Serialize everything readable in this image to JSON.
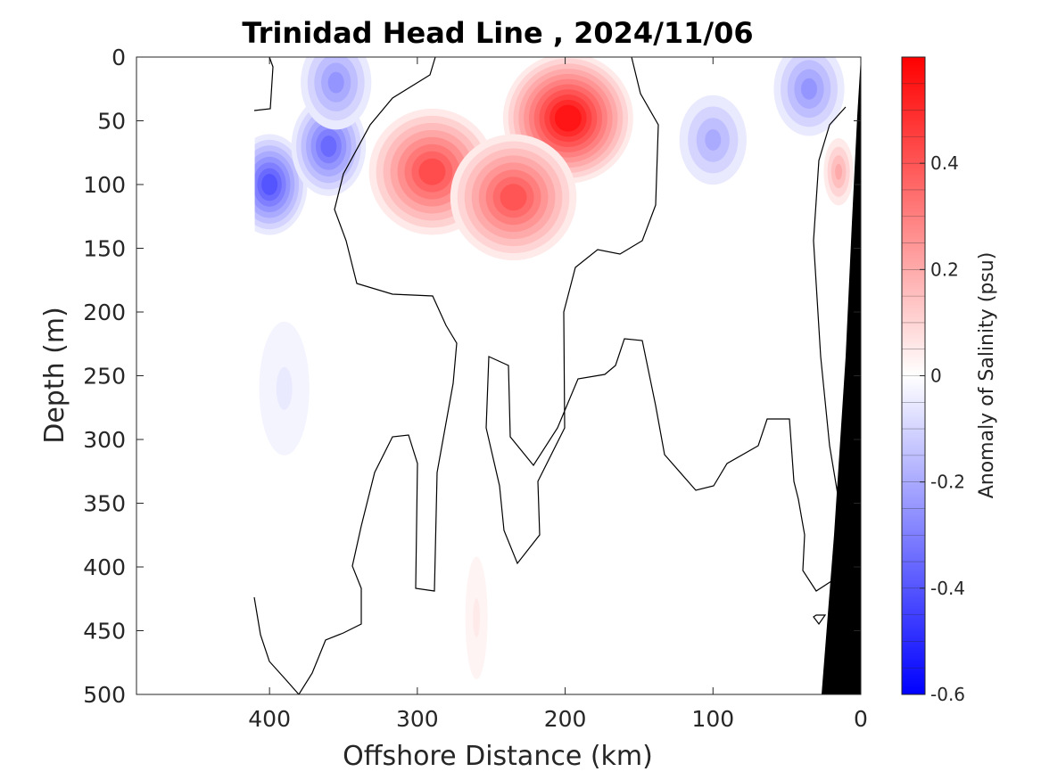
{
  "chart_data": {
    "type": "heatmap",
    "title": "Trinidad Head Line , 2024/11/06",
    "xlabel": "Offshore Distance (km)",
    "ylabel": "Depth (m)",
    "xlim": [
      490,
      0
    ],
    "ylim": [
      0,
      500
    ],
    "x_ticks": [
      400,
      300,
      200,
      100,
      0
    ],
    "y_ticks": [
      0,
      50,
      100,
      150,
      200,
      250,
      300,
      350,
      400,
      450,
      500
    ],
    "colorbar": {
      "label": "Anomaly of Salinity (psu)",
      "range": [
        -0.6,
        0.6
      ],
      "levels": 24,
      "ticks": [
        -0.6,
        -0.4,
        -0.2,
        0,
        0.2,
        0.4
      ],
      "low_color": "#0000ff",
      "high_color": "#ff0000"
    },
    "data_start_x": 410,
    "features": [
      {
        "kind": "positive",
        "x": 198,
        "depth": 48,
        "anomaly": 0.55
      },
      {
        "kind": "positive",
        "x": 290,
        "depth": 90,
        "anomaly": 0.42
      },
      {
        "kind": "positive",
        "x": 235,
        "depth": 110,
        "anomaly": 0.4
      },
      {
        "kind": "positive",
        "x": 15,
        "depth": 90,
        "anomaly": 0.2
      },
      {
        "kind": "positive",
        "x": 260,
        "depth": 440,
        "anomaly": 0.05
      },
      {
        "kind": "negative",
        "x": 400,
        "depth": 100,
        "anomaly": -0.4
      },
      {
        "kind": "negative",
        "x": 360,
        "depth": 70,
        "anomaly": -0.35
      },
      {
        "kind": "negative",
        "x": 355,
        "depth": 20,
        "anomaly": -0.25
      },
      {
        "kind": "negative",
        "x": 100,
        "depth": 65,
        "anomaly": -0.2
      },
      {
        "kind": "negative",
        "x": 35,
        "depth": 25,
        "anomaly": -0.25
      },
      {
        "kind": "negative",
        "x": 390,
        "depth": 260,
        "anomaly": -0.05
      }
    ]
  }
}
